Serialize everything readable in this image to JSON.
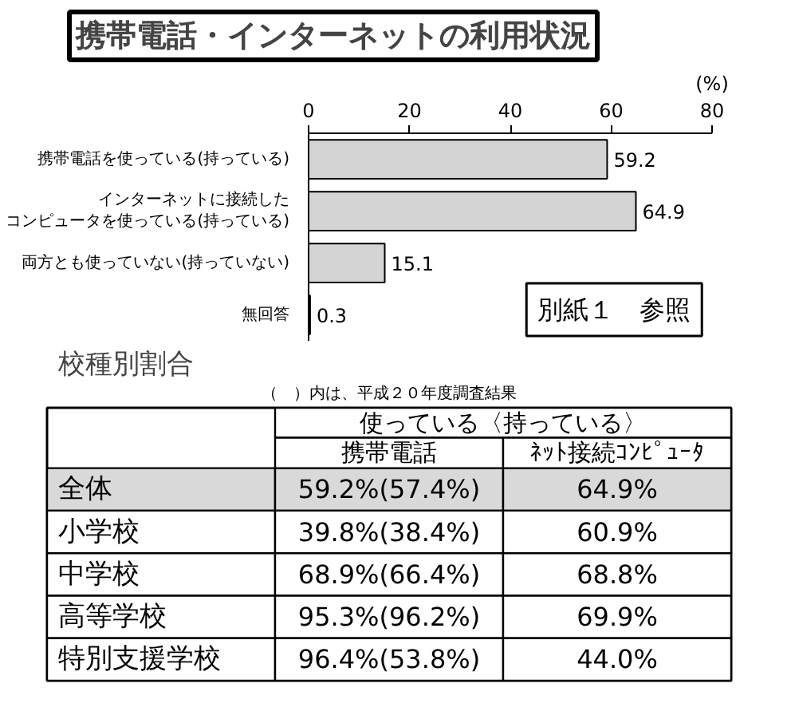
{
  "chart_data": [
    {
      "type": "bar",
      "orientation": "horizontal",
      "title": "携帯電話・インターネットの利用状況",
      "xlabel": "(%)",
      "categories": [
        "携帯電話を使っている(持っている)",
        "インターネットに接続したコンピュータを使っている(持っている)",
        "両方とも使っていない(持っていない)",
        "無回答"
      ],
      "values": [
        59.2,
        64.9,
        15.1,
        0.3
      ],
      "color": "#d4d4d4",
      "xlim": [
        0,
        80
      ],
      "xticks": [
        0,
        20,
        40,
        60,
        80
      ],
      "data_labels": true,
      "annotations": [
        "別紙１　参照"
      ]
    },
    {
      "type": "other",
      "title": "校種別割合",
      "subtitle": "（　）内は、平成２０年度調査結果",
      "xlabel": "使っている〈持っている〉",
      "categories": [
        "携帯電話",
        "ﾈｯﾄ接続ｺﾝﾋﾟｭｰﾀ"
      ],
      "y_categories": [
        "全体",
        "小学校",
        "中学校",
        "高等学校",
        "特別支援学校"
      ],
      "cell_labels": [
        [
          "59.2%(57.4%)",
          "64.9%"
        ],
        [
          "39.8%(38.4%)",
          "60.9%"
        ],
        [
          "68.9%(66.4%)",
          "68.8%"
        ],
        [
          "95.3%(96.2%)",
          "69.9%"
        ],
        [
          "96.4%(53.8%)",
          "44.0%"
        ]
      ],
      "colors": [
        [
          "#d9d9d9",
          "#d9d9d9"
        ],
        [
          "#ffffff",
          "#ffffff"
        ],
        [
          "#ffffff",
          "#ffffff"
        ],
        [
          "#ffffff",
          "#ffffff"
        ],
        [
          "#ffffff",
          "#ffffff"
        ]
      ]
    }
  ]
}
